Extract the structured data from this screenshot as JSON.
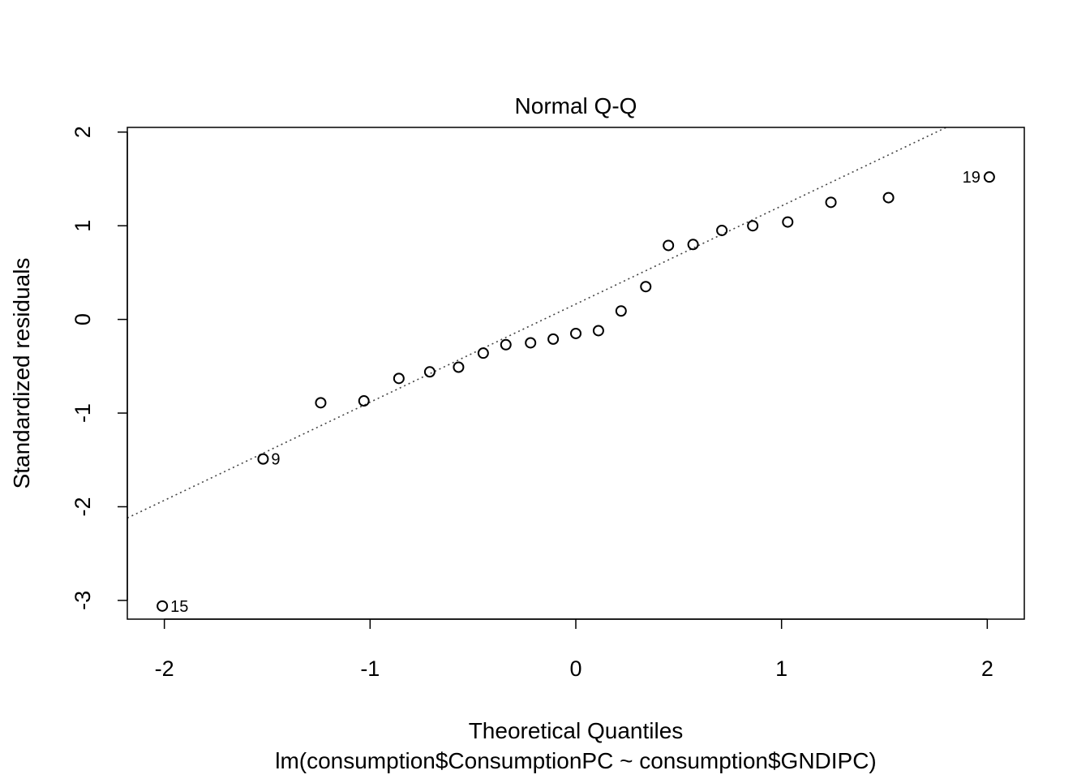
{
  "chart_data": {
    "type": "scatter",
    "title": "Normal Q-Q",
    "xlabel": "Theoretical Quantiles",
    "subtitle": "lm(consumption$ConsumptionPC ~ consumption$GNDIPC)",
    "ylabel": "Standardized residuals",
    "xlim": [
      -2.18,
      2.18
    ],
    "ylim": [
      -3.2,
      2.05
    ],
    "x_ticks": [
      -2,
      -1,
      0,
      1,
      2
    ],
    "x_tick_labels": [
      "-2",
      "-1",
      "0",
      "1",
      "2"
    ],
    "y_ticks": [
      -3,
      -2,
      -1,
      0,
      1,
      2
    ],
    "y_tick_labels": [
      "-3",
      "-2",
      "-1",
      "0",
      "1",
      "2"
    ],
    "grid": false,
    "reference_line": {
      "style": "dotted",
      "points": [
        [
          -2.18,
          -2.12
        ],
        [
          1.81,
          2.06
        ]
      ]
    },
    "points": [
      {
        "x": -2.01,
        "y": -3.06,
        "label": "15"
      },
      {
        "x": -1.52,
        "y": -1.49,
        "label": "9"
      },
      {
        "x": -1.24,
        "y": -0.89
      },
      {
        "x": -1.03,
        "y": -0.87
      },
      {
        "x": -0.86,
        "y": -0.63
      },
      {
        "x": -0.71,
        "y": -0.56
      },
      {
        "x": -0.57,
        "y": -0.51
      },
      {
        "x": -0.45,
        "y": -0.36
      },
      {
        "x": -0.34,
        "y": -0.27
      },
      {
        "x": -0.22,
        "y": -0.25
      },
      {
        "x": -0.11,
        "y": -0.21
      },
      {
        "x": 0.0,
        "y": -0.15
      },
      {
        "x": 0.11,
        "y": -0.12
      },
      {
        "x": 0.22,
        "y": 0.09
      },
      {
        "x": 0.34,
        "y": 0.35
      },
      {
        "x": 0.45,
        "y": 0.79
      },
      {
        "x": 0.57,
        "y": 0.8
      },
      {
        "x": 0.71,
        "y": 0.95
      },
      {
        "x": 0.86,
        "y": 1.0
      },
      {
        "x": 1.03,
        "y": 1.04
      },
      {
        "x": 1.24,
        "y": 1.25
      },
      {
        "x": 1.52,
        "y": 1.3
      },
      {
        "x": 2.01,
        "y": 1.52,
        "label": "19"
      }
    ]
  }
}
